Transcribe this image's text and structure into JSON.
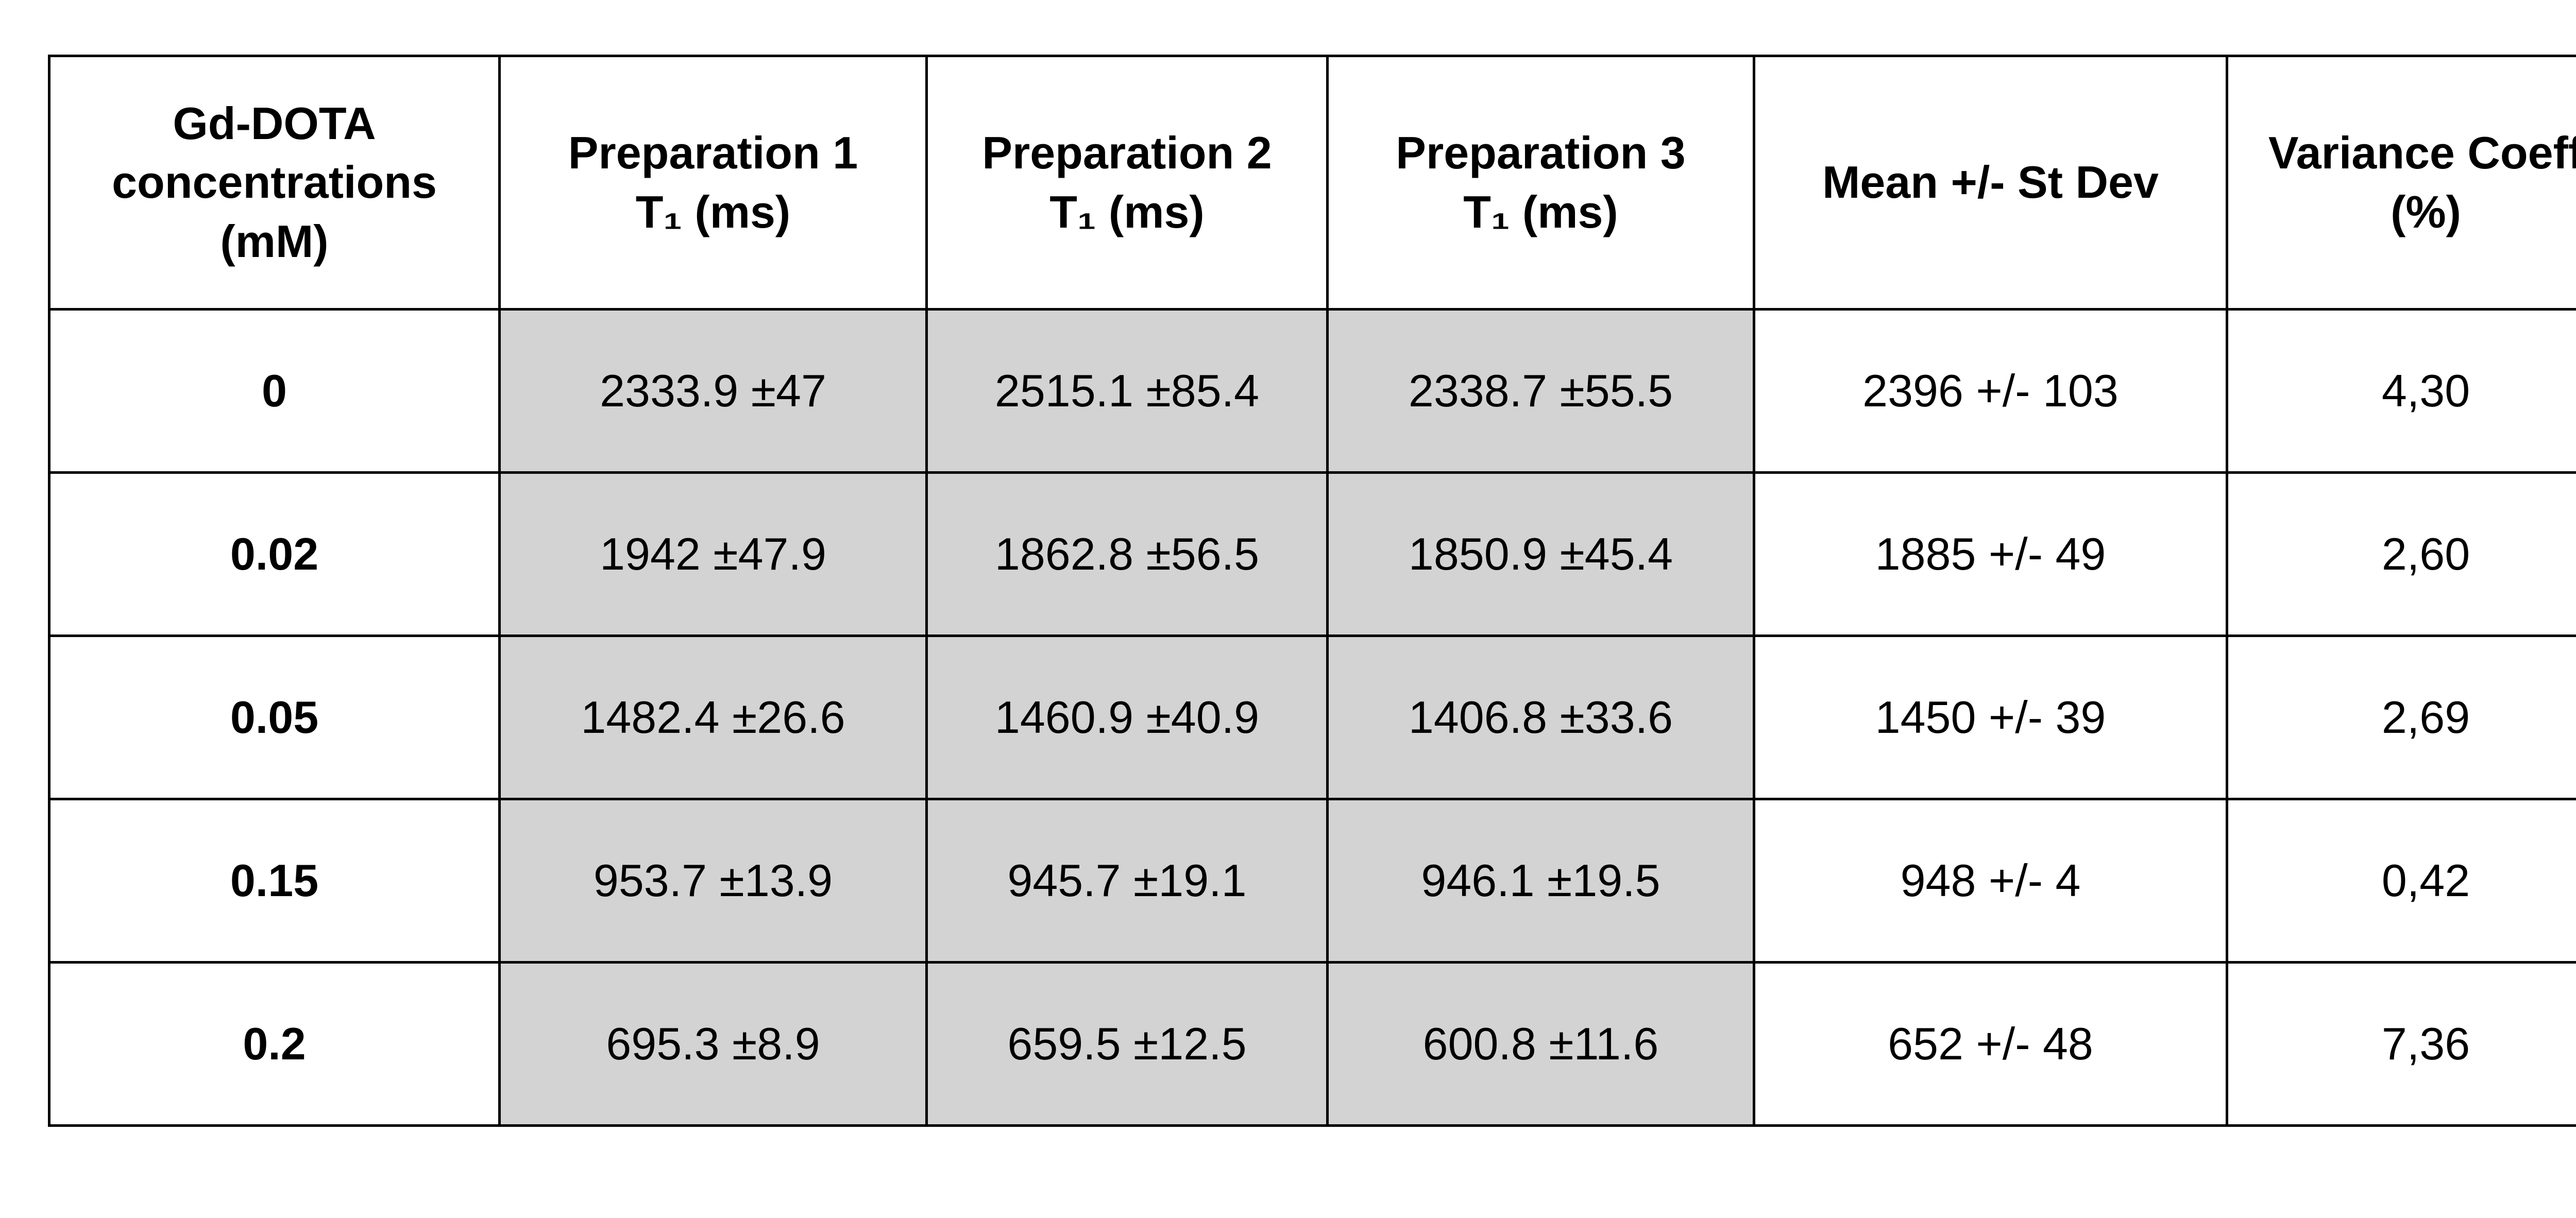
{
  "table": {
    "header": [
      [
        "Gd-DOTA",
        "concentrations",
        "(mM)"
      ],
      [
        "Preparation 1",
        "T₁ (ms)"
      ],
      [
        "Preparation 2",
        "T₁ (ms)"
      ],
      [
        "Preparation 3",
        "T₁ (ms)"
      ],
      [
        "Mean +/- St Dev"
      ],
      [
        "Variance Coeff",
        "(%)"
      ]
    ],
    "rows": [
      [
        "0",
        "2333.9 ±47",
        "2515.1 ±85.4",
        "2338.7 ±55.5",
        "2396 +/- 103",
        "4,30"
      ],
      [
        "0.02",
        "1942 ±47.9",
        "1862.8 ±56.5",
        "1850.9 ±45.4",
        "1885 +/- 49",
        "2,60"
      ],
      [
        "0.05",
        "1482.4 ±26.6",
        "1460.9 ±40.9",
        "1406.8 ±33.6",
        "1450 +/- 39",
        "2,69"
      ],
      [
        "0.15",
        "953.7 ±13.9",
        "945.7 ±19.1",
        "946.1 ±19.5",
        "948 +/- 4",
        "0,42"
      ],
      [
        "0.2",
        "695.3 ±8.9",
        "659.5 ±12.5",
        "600.8 ±11.6",
        "652 +/- 48",
        "7,36"
      ]
    ]
  }
}
